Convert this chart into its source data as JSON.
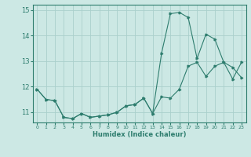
{
  "xlabel": "Humidex (Indice chaleur)",
  "ylabel": "",
  "bg_color": "#cce8e4",
  "grid_color": "#aad0cc",
  "line_color": "#2e7d6e",
  "xlim": [
    -0.5,
    23.5
  ],
  "ylim": [
    10.6,
    15.2
  ],
  "xticks": [
    0,
    1,
    2,
    3,
    4,
    5,
    6,
    7,
    8,
    9,
    10,
    11,
    12,
    13,
    14,
    15,
    16,
    17,
    18,
    19,
    20,
    21,
    22,
    23
  ],
  "yticks": [
    11,
    12,
    13,
    14,
    15
  ],
  "line1_x": [
    0,
    1,
    2,
    3,
    4,
    5,
    6,
    7,
    8,
    9,
    10,
    11,
    12,
    13,
    14,
    15,
    16,
    17,
    18,
    19,
    20,
    21,
    22,
    23
  ],
  "line1_y": [
    11.9,
    11.5,
    11.45,
    10.8,
    10.75,
    10.95,
    10.8,
    10.85,
    10.9,
    11.0,
    11.25,
    11.3,
    11.55,
    10.95,
    11.6,
    11.55,
    11.9,
    12.8,
    12.95,
    12.4,
    12.8,
    12.95,
    12.75,
    12.35
  ],
  "line2_x": [
    0,
    1,
    2,
    3,
    4,
    5,
    6,
    7,
    8,
    9,
    10,
    11,
    12,
    13,
    14,
    15,
    16,
    17,
    18,
    19,
    20,
    21,
    22,
    23
  ],
  "line2_y": [
    11.9,
    11.5,
    11.45,
    10.8,
    10.75,
    10.95,
    10.8,
    10.85,
    10.9,
    11.0,
    11.25,
    11.3,
    11.55,
    10.95,
    13.3,
    14.85,
    14.9,
    14.7,
    13.1,
    14.05,
    13.85,
    12.95,
    12.3,
    12.95
  ]
}
